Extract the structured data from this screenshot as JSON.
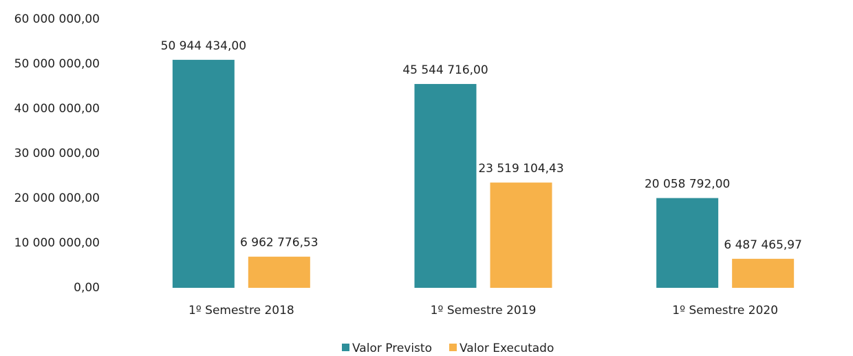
{
  "chart_data": {
    "type": "bar",
    "categories": [
      "1º Semestre 2018",
      "1º Semestre 2019",
      "1º Semestre 2020"
    ],
    "series": [
      {
        "name": "Valor Previsto",
        "color": "#2e8f9a",
        "values": [
          50944434.0,
          45544716.0,
          20058792.0
        ],
        "value_labels": [
          "50 944 434,00",
          "45 544 716,00",
          "20 058 792,00"
        ]
      },
      {
        "name": "Valor Executado",
        "color": "#f7b24a",
        "values": [
          6962776.53,
          23519104.43,
          6487465.97
        ],
        "value_labels": [
          "6 962 776,53",
          "23 519 104,43",
          "6 487 465,97"
        ]
      }
    ],
    "ylim": [
      0,
      60000000
    ],
    "yticks": [
      {
        "value": 0,
        "label": "0,00"
      },
      {
        "value": 10000000,
        "label": "10 000 000,00"
      },
      {
        "value": 20000000,
        "label": "20 000 000,00"
      },
      {
        "value": 30000000,
        "label": "30 000 000,00"
      },
      {
        "value": 40000000,
        "label": "40 000 000,00"
      },
      {
        "value": 50000000,
        "label": "50 000 000,00"
      },
      {
        "value": 60000000,
        "label": "60 000 000,00"
      }
    ],
    "legend": "bottom"
  }
}
